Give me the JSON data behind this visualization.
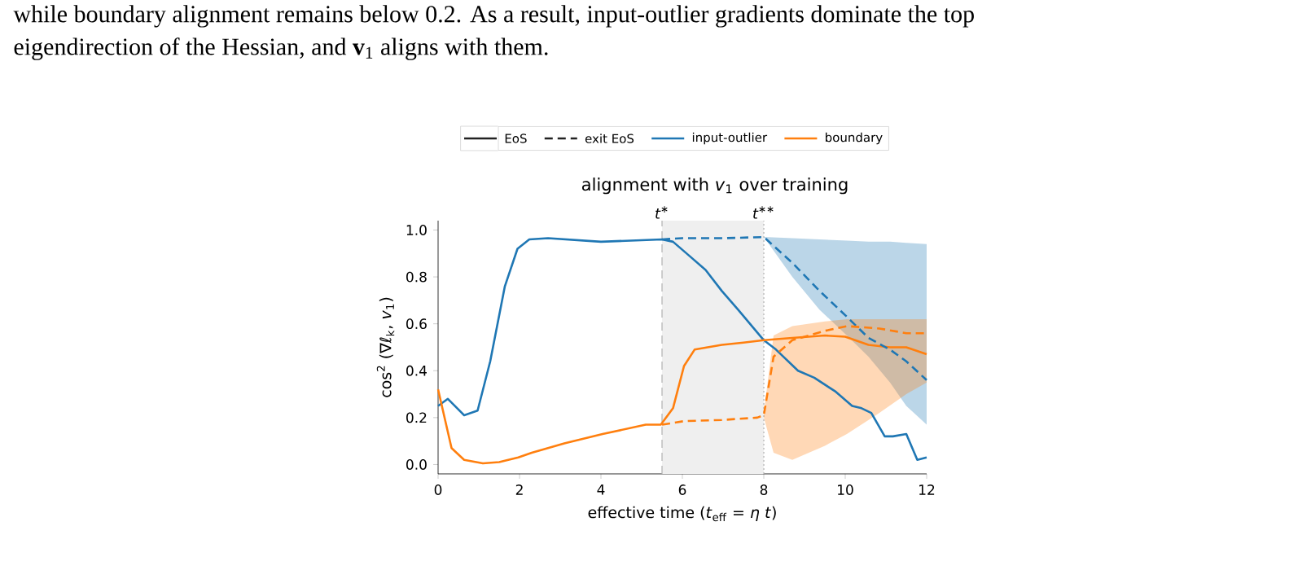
{
  "chart_data": {
    "type": "line",
    "title": "alignment with *v*$_{1}$ over training",
    "xlabel": "effective time  (*t*$_{eff}$ = *η* *t*)",
    "ylabel": "cos$^{2}$ (∇ℓ$_{k}$, *v*$_{1}$)",
    "annotations": [
      "while boundary alignment remains below 0.2. As a result, input-outlier gradients dominate the top",
      "eigendirection of the Hessian, and **v**$_{1}$ aligns with them.",
      "EoS",
      "exit EoS"
    ],
    "xlim": [
      0,
      12
    ],
    "ylim": [
      -0.04,
      1.04
    ],
    "xticks": [
      0,
      2,
      4,
      6,
      8,
      10,
      12
    ],
    "yticks": [
      {
        "value": 0,
        "label": "0.0"
      },
      {
        "value": 0.2,
        "label": "0.2"
      },
      {
        "value": 0.4,
        "label": "0.4"
      },
      {
        "value": 0.6,
        "label": "0.6"
      },
      {
        "value": 0.8,
        "label": "0.8"
      },
      {
        "value": 1.0,
        "label": "1.0"
      }
    ],
    "legend": "top",
    "bands": [
      {
        "axis": "x",
        "from": 5.5,
        "to": 8,
        "color": "#efefef"
      }
    ],
    "ref_lines": [
      {
        "axis": "x",
        "value": 5.5,
        "label": "t$^{∗}$",
        "color": "#b0b0b0",
        "line_style": "dashed"
      },
      {
        "axis": "x",
        "value": 8,
        "label": "t$^{∗∗}$",
        "color": "#b0b0b0",
        "line_style": "dotted"
      }
    ],
    "series": [
      {
        "name": "input-outlier",
        "color": "#1f77b4",
        "line_style": "solid",
        "x": [
          0,
          0.24,
          0.64,
          0.97,
          1.28,
          1.64,
          1.95,
          2.24,
          2.7,
          4.0,
          5.5,
          5.77,
          6.17,
          6.57,
          6.97,
          7.37,
          8.0,
          8.3,
          8.84,
          9.24,
          9.77,
          10.17,
          10.4,
          10.64,
          10.97,
          11.17,
          11.5,
          11.77,
          12
        ],
        "values": [
          0.25,
          0.28,
          0.21,
          0.23,
          0.44,
          0.76,
          0.92,
          0.96,
          0.965,
          0.95,
          0.96,
          0.95,
          0.89,
          0.83,
          0.74,
          0.66,
          0.53,
          0.49,
          0.4,
          0.37,
          0.31,
          0.25,
          0.24,
          0.22,
          0.12,
          0.12,
          0.13,
          0.02,
          0.03
        ]
      },
      {
        "name": "boundary",
        "color": "#ff7f0e",
        "line_style": "solid",
        "x": [
          0,
          0.33,
          0.64,
          1.1,
          1.5,
          1.97,
          2.3,
          3.1,
          4.04,
          5.1,
          5.47,
          5.77,
          6.04,
          6.3,
          6.97,
          7.5,
          8,
          8.7,
          9.5,
          10,
          10.57,
          11.1,
          11.5,
          12
        ],
        "values": [
          0.32,
          0.07,
          0.02,
          0.005,
          0.01,
          0.03,
          0.05,
          0.09,
          0.13,
          0.17,
          0.17,
          0.24,
          0.42,
          0.49,
          0.51,
          0.52,
          0.53,
          0.54,
          0.55,
          0.545,
          0.51,
          0.5,
          0.5,
          0.47
        ]
      },
      {
        "color": "#1f77b4",
        "line_style": "dashed",
        "x": [
          5.5,
          6,
          7,
          8,
          8.7,
          9.37,
          10.04,
          10.57,
          11.1,
          11.5,
          12
        ],
        "values": [
          0.96,
          0.965,
          0.965,
          0.97,
          0.86,
          0.74,
          0.63,
          0.54,
          0.49,
          0.44,
          0.36
        ],
        "lower": [
          null,
          null,
          null,
          0.97,
          0.8,
          0.66,
          0.55,
          0.46,
          0.35,
          0.25,
          0.17
        ],
        "upper": [
          null,
          null,
          null,
          0.97,
          0.965,
          0.96,
          0.955,
          0.95,
          0.95,
          0.945,
          0.94
        ]
      },
      {
        "color": "#ff7f0e",
        "line_style": "dashed",
        "x": [
          5.5,
          6.04,
          6.97,
          7.84,
          8,
          8.24,
          8.7,
          9.5,
          10.04,
          10.84,
          11.5,
          12
        ],
        "values": [
          0.17,
          0.185,
          0.19,
          0.2,
          0.21,
          0.46,
          0.53,
          0.57,
          0.59,
          0.58,
          0.56,
          0.56
        ],
        "lower": [
          null,
          null,
          null,
          null,
          0.2,
          0.05,
          0.02,
          0.08,
          0.13,
          0.22,
          0.3,
          0.35
        ],
        "upper": [
          null,
          null,
          null,
          null,
          0.22,
          0.55,
          0.59,
          0.61,
          0.62,
          0.62,
          0.62,
          0.62
        ]
      }
    ]
  }
}
